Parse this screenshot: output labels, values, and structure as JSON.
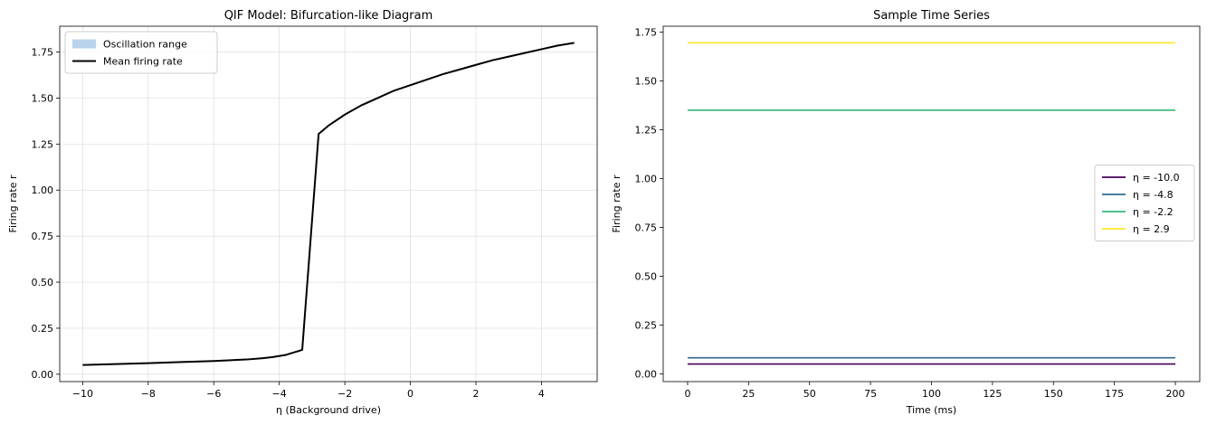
{
  "chart_data": [
    {
      "type": "line",
      "title": "QIF Model: Bifurcation-like Diagram",
      "xlabel": "η (Background drive)",
      "ylabel": "Firing rate r",
      "xlim": [
        -10.7,
        5.7
      ],
      "ylim": [
        -0.04,
        1.89
      ],
      "xticks": [
        -10,
        -8,
        -6,
        -4,
        -2,
        0,
        2,
        4
      ],
      "yticks": [
        0.0,
        0.25,
        0.5,
        0.75,
        1.0,
        1.25,
        1.5,
        1.75
      ],
      "grid": true,
      "legend": {
        "position": "top-left",
        "entries": [
          {
            "label": "Oscillation range",
            "kind": "patch",
            "color": "#b9d3ea"
          },
          {
            "label": "Mean firing rate",
            "kind": "line",
            "color": "#000000"
          }
        ]
      },
      "series": [
        {
          "name": "Mean firing rate",
          "color": "#000000",
          "x": [
            -10,
            -9,
            -8,
            -7,
            -6,
            -5,
            -4.5,
            -4.2,
            -3.8,
            -3.3,
            -2.8,
            -2.5,
            -2,
            -1.5,
            -1,
            -0.5,
            0,
            0.5,
            1,
            1.5,
            2,
            2.5,
            3,
            3.5,
            4,
            4.5,
            5
          ],
          "y": [
            0.05,
            0.055,
            0.06,
            0.066,
            0.072,
            0.08,
            0.087,
            0.093,
            0.105,
            0.132,
            1.305,
            1.35,
            1.41,
            1.46,
            1.5,
            1.54,
            1.57,
            1.6,
            1.63,
            1.655,
            1.68,
            1.705,
            1.725,
            1.745,
            1.765,
            1.785,
            1.8
          ]
        }
      ]
    },
    {
      "type": "line",
      "title": "Sample Time Series",
      "xlabel": "Time (ms)",
      "ylabel": "Firing rate r",
      "xlim": [
        -10,
        210
      ],
      "ylim": [
        -0.04,
        1.78
      ],
      "xticks": [
        0,
        25,
        50,
        75,
        100,
        125,
        150,
        175,
        200
      ],
      "yticks": [
        0.0,
        0.25,
        0.5,
        0.75,
        1.0,
        1.25,
        1.5,
        1.75
      ],
      "grid": false,
      "legend": {
        "position": "center-right",
        "entries": [
          {
            "label": "η = -10.0",
            "kind": "line",
            "color": "#440154"
          },
          {
            "label": "η = -4.8",
            "kind": "line",
            "color": "#31688e"
          },
          {
            "label": "η = -2.2",
            "kind": "line",
            "color": "#35b779"
          },
          {
            "label": "η = 2.9",
            "kind": "line",
            "color": "#fde725"
          }
        ]
      },
      "series": [
        {
          "name": "η = -10.0",
          "color": "#440154",
          "x": [
            0,
            200
          ],
          "y": [
            0.05,
            0.05
          ]
        },
        {
          "name": "η = -4.8",
          "color": "#31688e",
          "x": [
            0,
            200
          ],
          "y": [
            0.082,
            0.082
          ]
        },
        {
          "name": "η = -2.2",
          "color": "#35b779",
          "x": [
            0,
            200
          ],
          "y": [
            1.35,
            1.35
          ]
        },
        {
          "name": "η = 2.9",
          "color": "#fde725",
          "x": [
            0,
            200
          ],
          "y": [
            1.695,
            1.695
          ]
        }
      ]
    }
  ]
}
